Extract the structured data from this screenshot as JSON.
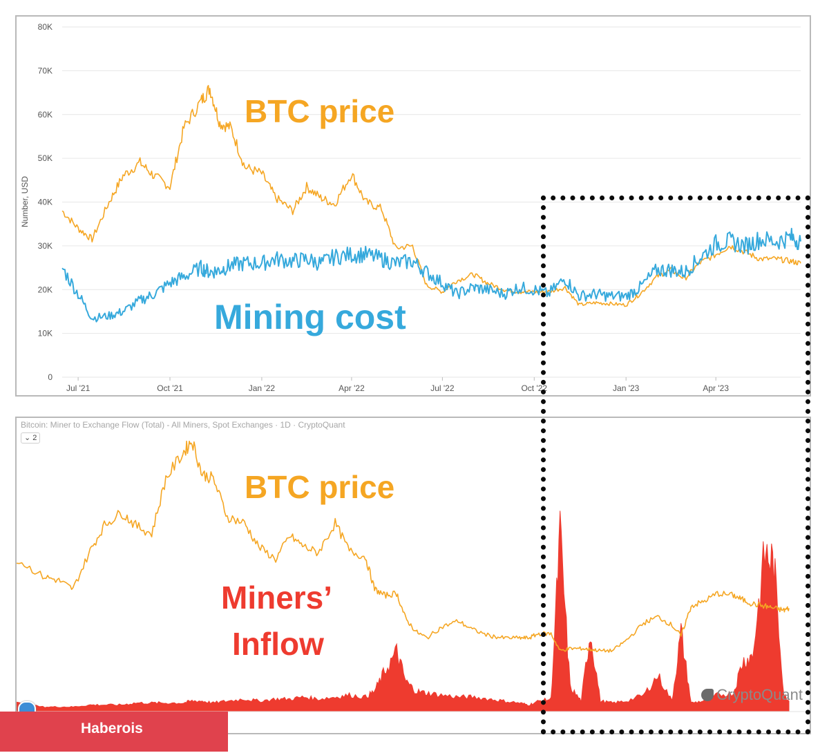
{
  "top_chart": {
    "y_axis_title": "Number, USD",
    "y_ticks": [
      "0",
      "10K",
      "20K",
      "30K",
      "40K",
      "50K",
      "60K",
      "70K",
      "80K"
    ],
    "x_ticks": [
      "Jul '21",
      "Oct '21",
      "Jan '22",
      "Apr '22",
      "Jul '22",
      "Oct '22",
      "Jan '23",
      "Apr '23"
    ],
    "label_btc": "BTC price",
    "label_mining": "Mining cost"
  },
  "bottom_chart": {
    "header": "Bitcoin: Miner to Exchange Flow (Total) - All Miners, Spot Exchanges · 1D · CryptoQuant",
    "series_chip": "⌄ 2",
    "label_btc": "BTC price",
    "label_miners_1": "Miners’",
    "label_miners_2": "Inflow",
    "watermark": "CryptoQuant"
  },
  "highlight_box": "dotted rectangle marking Oct 2022 onward",
  "brand": "Haberois",
  "colors": {
    "btc": "#f5a623",
    "mining": "#36a9dc",
    "inflow": "#ee3b2f",
    "grid": "#e6e6e6"
  },
  "chart_data": [
    {
      "type": "line",
      "y_axis_title": "Number, USD",
      "ylim": [
        0,
        80000
      ],
      "x_ticks": [
        "Jul '21",
        "Oct '21",
        "Jan '22",
        "Apr '22",
        "Jul '22",
        "Oct '22",
        "Jan '23",
        "Apr '23"
      ],
      "x": [
        "2021-06-15",
        "2021-07-01",
        "2021-07-15",
        "2021-08-01",
        "2021-08-15",
        "2021-09-01",
        "2021-09-15",
        "2021-10-01",
        "2021-10-15",
        "2021-11-01",
        "2021-11-10",
        "2021-11-20",
        "2021-12-01",
        "2021-12-15",
        "2022-01-01",
        "2022-01-15",
        "2022-02-01",
        "2022-02-15",
        "2022-03-01",
        "2022-03-15",
        "2022-04-01",
        "2022-04-15",
        "2022-05-01",
        "2022-05-15",
        "2022-06-01",
        "2022-06-15",
        "2022-07-01",
        "2022-07-15",
        "2022-08-01",
        "2022-08-15",
        "2022-09-01",
        "2022-09-15",
        "2022-10-01",
        "2022-10-15",
        "2022-11-01",
        "2022-11-15",
        "2022-12-01",
        "2022-12-15",
        "2023-01-01",
        "2023-01-15",
        "2023-02-01",
        "2023-02-15",
        "2023-03-01",
        "2023-03-15",
        "2023-04-01",
        "2023-04-15",
        "2023-05-01",
        "2023-05-15",
        "2023-06-01",
        "2023-06-15",
        "2023-06-25"
      ],
      "series": [
        {
          "name": "BTC price",
          "values": [
            38000,
            34000,
            31500,
            40000,
            46000,
            49000,
            46000,
            43500,
            57000,
            63000,
            66000,
            58000,
            57000,
            48000,
            46500,
            41000,
            38000,
            43500,
            41000,
            39500,
            46500,
            40000,
            38500,
            29500,
            30000,
            21000,
            19500,
            22000,
            23500,
            21500,
            20000,
            19500,
            19500,
            19500,
            20500,
            16500,
            17000,
            16800,
            16500,
            19000,
            23000,
            24500,
            22500,
            26000,
            28000,
            30000,
            28500,
            27000,
            27000,
            26500,
            26000
          ]
        },
        {
          "name": "Mining cost",
          "values": [
            25000,
            19000,
            13500,
            14000,
            15000,
            17500,
            19000,
            21500,
            23000,
            25000,
            24000,
            24500,
            25500,
            26000,
            26000,
            27000,
            26500,
            27000,
            26000,
            27500,
            28000,
            28000,
            27000,
            26000,
            26500,
            24000,
            21500,
            19000,
            20500,
            20000,
            19000,
            20500,
            20000,
            19000,
            22500,
            18500,
            19000,
            18500,
            18500,
            20500,
            24500,
            24500,
            24000,
            27000,
            30500,
            31000,
            30000,
            31500,
            31000,
            32000,
            31000
          ]
        }
      ]
    },
    {
      "type": "area",
      "title": "Bitcoin: Miner to Exchange Flow (Total) - All Miners, Spot Exchanges · 1D · CryptoQuant",
      "x": [
        "2021-05-20",
        "2021-06-15",
        "2021-07-01",
        "2021-07-15",
        "2021-08-01",
        "2021-08-15",
        "2021-09-01",
        "2021-09-15",
        "2021-10-01",
        "2021-10-15",
        "2021-11-01",
        "2021-11-10",
        "2021-11-20",
        "2021-12-01",
        "2021-12-15",
        "2022-01-01",
        "2022-01-15",
        "2022-02-01",
        "2022-02-15",
        "2022-03-01",
        "2022-03-15",
        "2022-04-01",
        "2022-04-15",
        "2022-05-01",
        "2022-05-10",
        "2022-05-20",
        "2022-06-01",
        "2022-06-10",
        "2022-06-20",
        "2022-07-01",
        "2022-07-15",
        "2022-08-01",
        "2022-08-15",
        "2022-09-01",
        "2022-09-15",
        "2022-10-01",
        "2022-10-10",
        "2022-10-20",
        "2022-11-01",
        "2022-11-10",
        "2022-11-20",
        "2022-12-01",
        "2022-12-10",
        "2022-12-20",
        "2023-01-01",
        "2023-01-15",
        "2023-02-01",
        "2023-02-15",
        "2023-03-01",
        "2023-03-10",
        "2023-03-20",
        "2023-04-01",
        "2023-04-15",
        "2023-05-01",
        "2023-05-10",
        "2023-05-20",
        "2023-06-01",
        "2023-06-10",
        "2023-06-20",
        "2023-06-25"
      ],
      "series": [
        {
          "name": "BTC price",
          "values": [
            38000,
            34000,
            33000,
            31000,
            40000,
            46000,
            49000,
            46000,
            44000,
            57000,
            63000,
            66000,
            58000,
            57000,
            48000,
            46500,
            41000,
            38000,
            43500,
            41000,
            39500,
            46500,
            40000,
            38500,
            31000,
            29500,
            30000,
            24000,
            21000,
            19500,
            22000,
            23500,
            21500,
            20000,
            19500,
            19500,
            19500,
            20500,
            20500,
            16500,
            17000,
            17000,
            16800,
            16500,
            16500,
            19000,
            23000,
            24500,
            22500,
            20000,
            27000,
            28000,
            30000,
            29500,
            28500,
            27500,
            27000,
            26500,
            26000,
            26500
          ]
        },
        {
          "name": "Miners’ Inflow",
          "values": [
            4,
            2,
            2,
            2,
            3,
            3,
            3,
            4,
            4,
            4,
            4,
            5,
            5,
            4,
            5,
            6,
            5,
            6,
            6,
            7,
            6,
            7,
            8,
            7,
            10,
            20,
            30,
            15,
            10,
            9,
            8,
            7,
            7,
            6,
            5,
            4,
            3,
            5,
            6,
            90,
            12,
            5,
            40,
            5,
            4,
            5,
            8,
            18,
            5,
            40,
            4,
            5,
            8,
            9,
            25,
            28,
            80,
            75,
            8,
            5
          ]
        }
      ]
    }
  ]
}
